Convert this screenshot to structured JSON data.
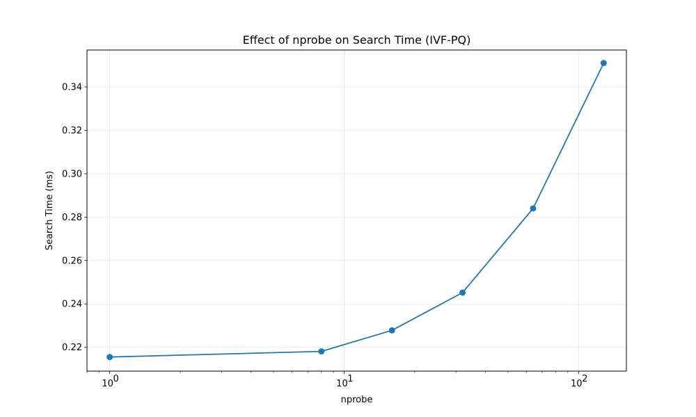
{
  "chart_data": {
    "type": "line",
    "title": "Effect of nprobe on Search Time (IVF-PQ)",
    "xlabel": "nprobe",
    "ylabel": "Search Time (ms)",
    "xscale": "log",
    "xlim": [
      0.8,
      160
    ],
    "ylim": [
      0.209,
      0.357
    ],
    "x_major_ticks": [
      1,
      10,
      100
    ],
    "x_tick_labels": [
      {
        "base": "10",
        "exp": "0"
      },
      {
        "base": "10",
        "exp": "1"
      },
      {
        "base": "10",
        "exp": "2"
      }
    ],
    "y_ticks": [
      0.22,
      0.24,
      0.26,
      0.28,
      0.3,
      0.32,
      0.34
    ],
    "y_tick_labels": [
      "0.22",
      "0.24",
      "0.26",
      "0.28",
      "0.30",
      "0.32",
      "0.34"
    ],
    "grid": true,
    "series": [
      {
        "x": [
          1,
          8,
          16,
          32,
          64,
          128
        ],
        "values": [
          0.2155,
          0.2181,
          0.2278,
          0.2452,
          0.284,
          0.351
        ],
        "color": "#1f77b4",
        "marker": "circle"
      }
    ]
  }
}
